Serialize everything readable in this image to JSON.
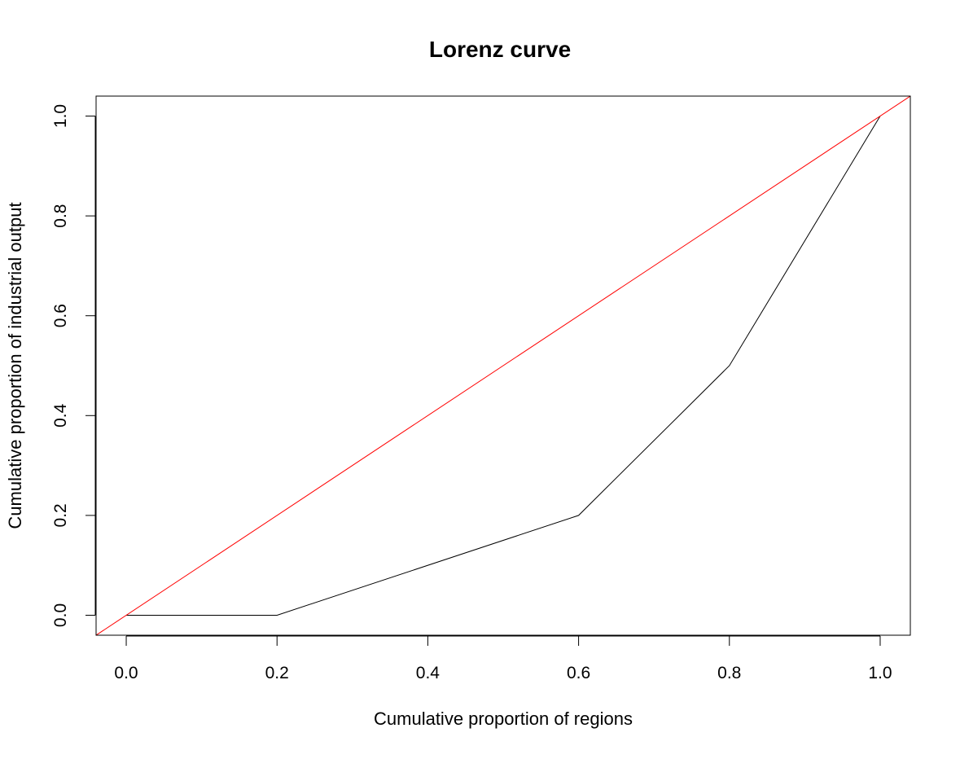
{
  "chart_data": {
    "type": "line",
    "title": "Lorenz curve",
    "xlabel": "Cumulative proportion of regions",
    "ylabel": "Cumulative proportion of industrial output",
    "xlim": [
      -0.04,
      1.04
    ],
    "ylim": [
      -0.04,
      1.04
    ],
    "x_ticks": [
      0.0,
      0.2,
      0.4,
      0.6,
      0.8,
      1.0
    ],
    "x_tick_labels": [
      "0.0",
      "0.2",
      "0.4",
      "0.6",
      "0.8",
      "1.0"
    ],
    "y_ticks": [
      0.0,
      0.2,
      0.4,
      0.6,
      0.8,
      1.0
    ],
    "y_tick_labels": [
      "0.0",
      "0.2",
      "0.4",
      "0.6",
      "0.8",
      "1.0"
    ],
    "grid": false,
    "legend": "none",
    "series": [
      {
        "color": "#000000",
        "x": [
          0.0,
          0.2,
          0.6,
          0.8,
          1.0
        ],
        "y": [
          0.0,
          0.0,
          0.2,
          0.5,
          1.0
        ]
      },
      {
        "color": "#ff0000",
        "x": [
          -0.04,
          1.04
        ],
        "y": [
          -0.04,
          1.04
        ]
      }
    ]
  }
}
